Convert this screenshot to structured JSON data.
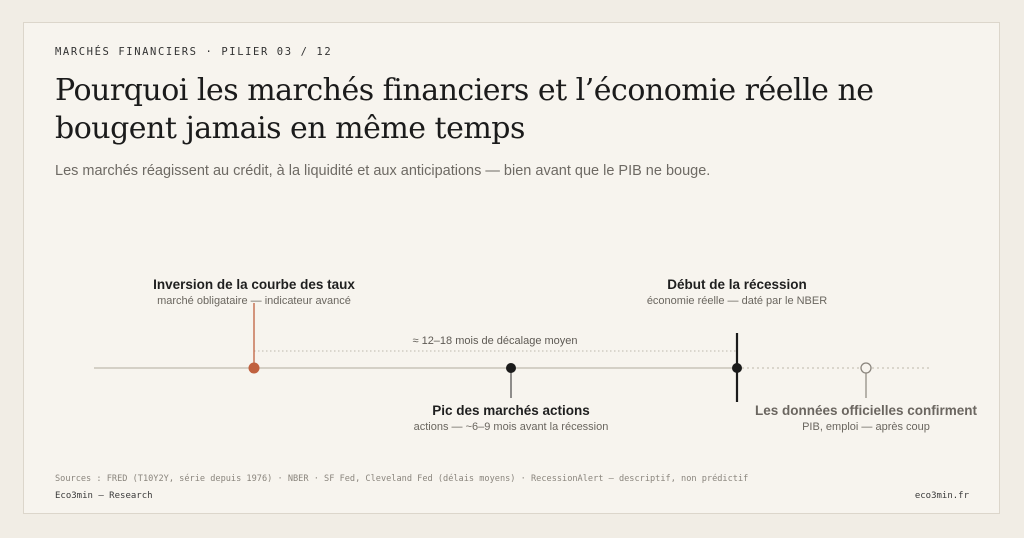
{
  "eyebrow": "MARCHÉS FINANCIERS · PILIER 03 / 12",
  "title": "Pourquoi les marchés financiers et l’économie réelle ne bougent jamais en même temps",
  "subtitle": "Les marchés réagissent au crédit, à la liquidité et aux anticipations — bien avant que le PIB ne bouge.",
  "colors": {
    "accent": "#c0613f",
    "ink": "#1b1b1b",
    "muted": "#8a857d",
    "axis": "#c9c3b8"
  },
  "timeline": {
    "gap_label": "≈ 12–18 mois de décalage moyen",
    "events": [
      {
        "id": "inversion",
        "title": "Inversion de la courbe des taux",
        "subtitle": "marché obligataire — indicateur avancé"
      },
      {
        "id": "pic-actions",
        "title": "Pic des marchés actions",
        "subtitle": "actions — ~6–9 mois avant la récession"
      },
      {
        "id": "recession",
        "title": "Début de la récession",
        "subtitle": "économie réelle — daté par le NBER"
      },
      {
        "id": "donnees",
        "title": "Les données officielles confirment",
        "subtitle": "PIB, emploi — après coup"
      }
    ]
  },
  "footer": {
    "sources": "Sources : FRED (T10Y2Y, série depuis 1976) · NBER · SF Fed, Cleveland Fed (délais moyens) · RecessionAlert — descriptif, non prédictif",
    "brand": "Eco3min — Research",
    "site": "eco3min.fr"
  }
}
